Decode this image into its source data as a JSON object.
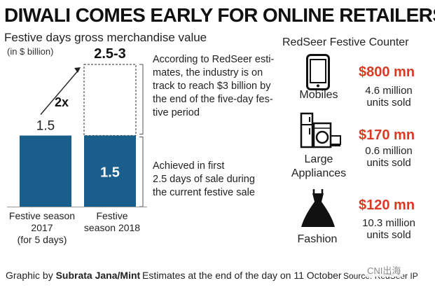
{
  "title": "DIWALI COMES EARLY FOR ONLINE RETAILERS",
  "chart_data": {
    "type": "bar",
    "title": "Festive days gross merchandise value",
    "ylabel": "(in $ billion)",
    "categories": [
      "Festive season 2017 (for 5 days)",
      "Festive season 2018"
    ],
    "category_lines": [
      [
        "Festive season",
        "2017",
        "(for 5 days)"
      ],
      [
        "Festive",
        "season 2018"
      ]
    ],
    "values": [
      1.5,
      1.5
    ],
    "projection": {
      "category": "Festive season 2018",
      "low": 2.5,
      "high": 3,
      "label": "2.5-3"
    },
    "data_labels": [
      "1.5",
      "1.5"
    ],
    "growth_label": "2x",
    "ylim": [
      0,
      3
    ],
    "bar_color": "#1a5e8c"
  },
  "notes": {
    "projection_lines": [
      "According to RedSeer esti-",
      "mates, the industry is on",
      "track to reach $3 billion by",
      "the end of the five-day fes-",
      "tive period"
    ],
    "achieved_lines": [
      "Achieved in first",
      "2.5 days of sale during",
      "the current festive sale"
    ]
  },
  "counter": {
    "title": "RedSeer Festive Counter",
    "accent_color": "#d93a26",
    "items": [
      {
        "icon": "mobile-phone-icon",
        "category_lines": [
          "Mobiles"
        ],
        "value": "$800 mn",
        "units_lines": [
          "4.6 million",
          "units sold"
        ]
      },
      {
        "icon": "appliances-icon",
        "category_lines": [
          "Large",
          "Appliances"
        ],
        "value": "$170 mn",
        "units_lines": [
          "0.6 million",
          "units sold"
        ]
      },
      {
        "icon": "dress-icon",
        "category_lines": [
          "Fashion"
        ],
        "value": "$120 mn",
        "units_lines": [
          "10.3 million",
          "units sold"
        ]
      }
    ]
  },
  "footer": {
    "credit_prefix": "Graphic by ",
    "credit_name": "Subrata Jana/Mint",
    "estimate": "Estimates at the end of the day on 11 October",
    "source": "Source: RedSeer IP"
  },
  "watermark": "CNI出海"
}
